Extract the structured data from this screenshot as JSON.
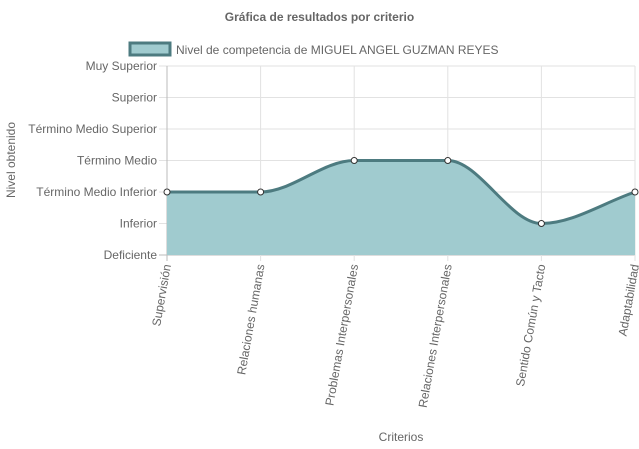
{
  "chart_data": {
    "type": "area",
    "title": "Gráfica de resultados por criterio",
    "xlabel": "Criterios",
    "ylabel": "Nivel obtenido",
    "y_levels": [
      "Deficiente",
      "Inferior",
      "Término Medio Inferior",
      "Término Medio",
      "Término Medio Superior",
      "Superior",
      "Muy Superior"
    ],
    "ylim": [
      0,
      6
    ],
    "categories": [
      "Supervisión",
      "Relaciones humanas",
      "Problemas Interpersonales",
      "Relaciones Interpersonales",
      "Sentido Común y Tacto",
      "Adaptabilidad"
    ],
    "series": [
      {
        "name": "Nivel de competencia de MIGUEL ANGEL GUZMAN REYES",
        "values": [
          2,
          2,
          3,
          3,
          1,
          2
        ],
        "fill_color": "#a0cbcf",
        "line_color": "#4d7b80"
      }
    ],
    "grid": true,
    "legend_position": "top"
  }
}
